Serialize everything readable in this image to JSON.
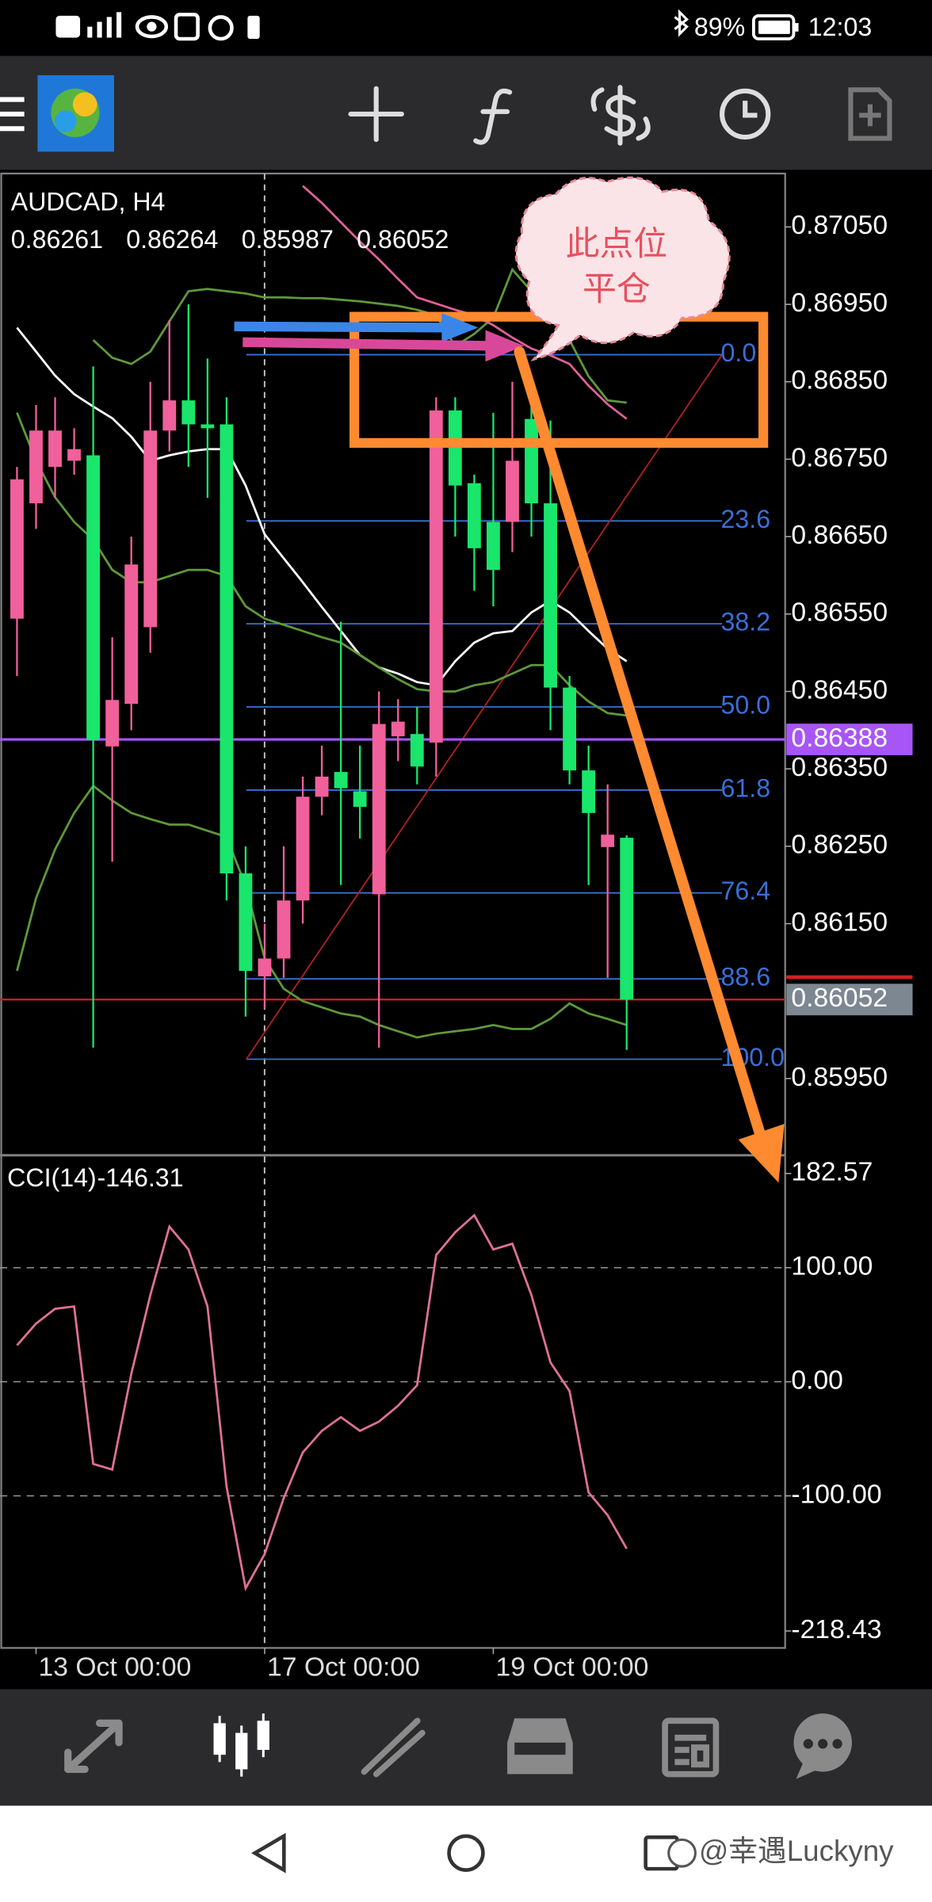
{
  "status_bar": {
    "battery": "89%",
    "time": "12:03"
  },
  "annotation": {
    "lines": [
      "此点位",
      "平仓"
    ]
  },
  "watermark": "@幸遇Luckyny",
  "chart_data": [
    {
      "type": "candlestick",
      "title": "AUDCAD, H4",
      "up_color": "#f0609a",
      "down_color": "#19e66b",
      "open": [
        0.86544,
        0.86693,
        0.8674,
        0.86748,
        0.86755,
        0.86379,
        0.86434,
        0.86533,
        0.86787,
        0.86826,
        0.86795,
        0.86795,
        0.86215,
        0.86082,
        0.86105,
        0.8618,
        0.86314,
        0.86346,
        0.86321,
        0.86188,
        0.86392,
        0.86395,
        0.86384,
        0.86813,
        0.86719,
        0.86669,
        0.86669,
        0.86802,
        0.86693,
        0.86455,
        0.86348,
        0.86249,
        0.86261
      ],
      "high": [
        0.8674,
        0.8682,
        0.8683,
        0.8679,
        0.8687,
        0.8652,
        0.8665,
        0.8685,
        0.8693,
        0.8695,
        0.8688,
        0.8683,
        0.8625,
        0.8615,
        0.8625,
        0.8634,
        0.8638,
        0.8654,
        0.8638,
        0.8645,
        0.8644,
        0.8643,
        0.8683,
        0.8683,
        0.8673,
        0.8681,
        0.8685,
        0.8683,
        0.868,
        0.8647,
        0.8638,
        0.8633,
        0.86264
      ],
      "low": [
        0.8647,
        0.8666,
        0.867,
        0.8673,
        0.8599,
        0.8623,
        0.864,
        0.865,
        0.8676,
        0.8674,
        0.867,
        0.8618,
        0.8603,
        0.8604,
        0.8608,
        0.8615,
        0.8629,
        0.862,
        0.8626,
        0.8599,
        0.8636,
        0.8633,
        0.8634,
        0.8665,
        0.8658,
        0.8656,
        0.8663,
        0.8665,
        0.864,
        0.8633,
        0.862,
        0.8608,
        0.85987
      ],
      "close": [
        0.86724,
        0.86787,
        0.86787,
        0.86763,
        0.86387,
        0.86439,
        0.86614,
        0.86787,
        0.86826,
        0.86795,
        0.8679,
        0.86215,
        0.86089,
        0.86105,
        0.8618,
        0.86314,
        0.8634,
        0.86325,
        0.86301,
        0.86408,
        0.86411,
        0.86353,
        0.86813,
        0.86716,
        0.86635,
        0.86607,
        0.86748,
        0.86693,
        0.86455,
        0.86348,
        0.86293,
        0.86265,
        0.86052
      ],
      "series": [
        {
          "color": "#ffffff",
          "values": [
            0.8692,
            0.86889,
            0.86858,
            0.86834,
            0.86818,
            0.86803,
            0.86779,
            0.86748,
            0.86755,
            0.8676,
            0.86763,
            0.86763,
            0.86716,
            0.86653,
            0.86622,
            0.86591,
            0.86559,
            0.86528,
            0.86497,
            0.86481,
            0.86473,
            0.86462,
            0.86458,
            0.86489,
            0.86513,
            0.86525,
            0.86528,
            0.86552,
            0.86567,
            0.86552,
            0.86528,
            0.86505,
            0.86489
          ]
        },
        {
          "color": "#5e9a3a",
          "values": [
            null,
            null,
            null,
            null,
            0.86904,
            0.86881,
            0.86873,
            0.86889,
            0.86928,
            0.86967,
            0.8697,
            0.86967,
            0.86964,
            0.86959,
            0.86959,
            0.86958,
            0.86958,
            0.86956,
            0.86954,
            0.86951,
            0.86948,
            0.86943,
            0.86936,
            0.86896,
            0.86912,
            0.86933,
            0.86995,
            0.86967,
            0.86943,
            0.86904,
            0.86857,
            0.86826,
            0.86823
          ]
        },
        {
          "color": "#5e9a3a",
          "values": [
            0.8681,
            0.86748,
            0.86701,
            0.86669,
            0.86646,
            0.86607,
            0.86591,
            0.86591,
            0.86599,
            0.86607,
            0.86607,
            0.86599,
            0.8656,
            0.86544,
            0.86536,
            0.86528,
            0.8652,
            0.86513,
            0.86497,
            0.86481,
            0.86466,
            0.86453,
            0.8645,
            0.8645,
            0.86458,
            0.86462,
            0.86473,
            0.86484,
            0.86484,
            0.86458,
            0.86437,
            0.86422,
            0.86419
          ]
        },
        {
          "color": "#5e9a3a",
          "values": [
            0.86089,
            0.86183,
            0.86246,
            0.86293,
            0.86328,
            0.86309,
            0.86293,
            0.86285,
            0.86278,
            0.86278,
            0.8627,
            0.86262,
            0.86199,
            0.86105,
            0.86066,
            0.8605,
            0.86042,
            0.86034,
            0.8603,
            0.86019,
            0.86011,
            0.86003,
            0.86008,
            0.86011,
            0.86014,
            0.86019,
            0.86014,
            0.86014,
            0.86027,
            0.86047,
            0.86034,
            0.86027,
            0.86019
          ]
        },
        {
          "color": "#e0609a",
          "values": [
            null,
            null,
            null,
            null,
            null,
            null,
            null,
            null,
            null,
            null,
            null,
            null,
            null,
            null,
            null,
            0.87103,
            0.87081,
            0.87056,
            0.87031,
            0.87008,
            0.86983,
            0.86959,
            0.86951,
            0.86943,
            0.86936,
            0.86923,
            0.86907,
            0.86893,
            0.86884,
            0.86873,
            0.86845,
            0.86821,
            0.86802
          ]
        }
      ],
      "ylim": [
        0.85854,
        0.87119
      ],
      "yticks": [
        {
          "value": 0.8705,
          "label": "0.87050"
        },
        {
          "value": 0.8695,
          "label": "0.86950"
        },
        {
          "value": 0.8685,
          "label": "0.86850"
        },
        {
          "value": 0.8675,
          "label": "0.86750"
        },
        {
          "value": 0.8665,
          "label": "0.86650"
        },
        {
          "value": 0.8655,
          "label": "0.86550"
        },
        {
          "value": 0.8645,
          "label": "0.86450"
        },
        {
          "value": 0.8635,
          "label": "0.86350"
        },
        {
          "value": 0.8625,
          "label": "0.86250"
        },
        {
          "value": 0.8615,
          "label": "0.86150"
        },
        {
          "value": 0.8595,
          "label": "0.85950"
        }
      ],
      "price_lines": [
        {
          "value": 0.86388,
          "color": "#a855f7"
        }
      ],
      "bid_color": "#d42020",
      "fib": {
        "high": 0.86885,
        "low": 0.85975,
        "color": "#3a6fd8",
        "levels": [
          {
            "value": 0,
            "label": "0.0"
          },
          23.6,
          38.2,
          {
            "value": 50,
            "label": "50.0"
          },
          61.8,
          76.4,
          88.6,
          {
            "value": 100,
            "label": "100.0"
          }
        ]
      },
      "xticks": [
        {
          "value": 1,
          "label": "13 Oct 00:00"
        },
        {
          "value": 13,
          "label": "17 Oct 00:00"
        },
        {
          "value": 25,
          "label": "19 Oct 00:00"
        }
      ]
    },
    {
      "type": "line",
      "title": "CCI(14)",
      "series": [
        {
          "color": "#e0709a",
          "values": [
            32,
            51,
            64,
            66,
            -72,
            -77,
            7,
            76,
            136,
            116,
            66,
            -92,
            -181,
            -151,
            -102,
            -62,
            -43,
            -31,
            -43,
            -35,
            -21,
            -3,
            111,
            131,
            146,
            116,
            121,
            76,
            17,
            -8,
            -97,
            -117,
            -146.31
          ]
        }
      ],
      "ylim": [
        -218.43,
        182.57
      ],
      "yticks": [
        182.57,
        {
          "value": 100,
          "label": "100.00"
        },
        {
          "value": 0,
          "label": "0.00"
        },
        {
          "value": -100,
          "label": "-100.00"
        },
        -218.43
      ]
    }
  ]
}
